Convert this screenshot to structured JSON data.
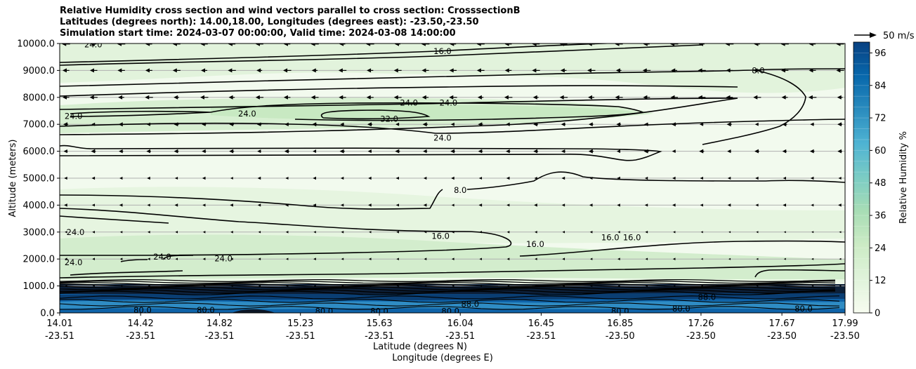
{
  "chart_data": {
    "type": "heatmap",
    "title_lines": [
      "Relative Humidity cross section and wind vectors parallel to cross section: CrosssectionB",
      "Latitudes (degrees north): 14.00,18.00, Longitudes (degrees east): -23.50,-23.50",
      "Simulation start time: 2024-03-07 00:00:00, Valid time: 2024-03-08 14:00:00"
    ],
    "xlabel": "Latitude (degrees N)",
    "xlabel2": "Longitude (degrees E)",
    "ylabel": "Altitude (meters)",
    "ylim": [
      0,
      10000
    ],
    "y_ticks": [
      "0.0",
      "1000.0",
      "2000.0",
      "3000.0",
      "4000.0",
      "5000.0",
      "6000.0",
      "7000.0",
      "8000.0",
      "9000.0",
      "10000.0"
    ],
    "x_ticks": [
      {
        "lat": "14.01",
        "lon": "-23.51"
      },
      {
        "lat": "14.42",
        "lon": "-23.51"
      },
      {
        "lat": "14.82",
        "lon": "-23.51"
      },
      {
        "lat": "15.23",
        "lon": "-23.51"
      },
      {
        "lat": "15.63",
        "lon": "-23.51"
      },
      {
        "lat": "16.04",
        "lon": "-23.51"
      },
      {
        "lat": "16.45",
        "lon": "-23.51"
      },
      {
        "lat": "16.85",
        "lon": "-23.50"
      },
      {
        "lat": "17.26",
        "lon": "-23.50"
      },
      {
        "lat": "17.67",
        "lon": "-23.50"
      },
      {
        "lat": "17.99",
        "lon": "-23.50"
      }
    ],
    "x_range": [
      14.01,
      17.99
    ],
    "grid": "horizontal",
    "colorbar": {
      "label": "Relative Humidity %",
      "range": [
        0,
        100
      ],
      "ticks": [
        "0",
        "12",
        "24",
        "36",
        "48",
        "60",
        "72",
        "84",
        "96"
      ],
      "colormap": "GnBu",
      "colors": [
        "#f7fcf0",
        "#e0f3db",
        "#ccebc5",
        "#a8ddb5",
        "#7bccc4",
        "#4eb3d3",
        "#2b8cbe",
        "#0868ac",
        "#084081"
      ]
    },
    "quiver_key": "50 m/s",
    "contour_labels": [
      {
        "text": "24.0",
        "lat": 14.18,
        "alt": 9960
      },
      {
        "text": "16.0",
        "lat": 15.95,
        "alt": 9710
      },
      {
        "text": "8.0",
        "lat": 17.55,
        "alt": 9000
      },
      {
        "text": "24.0",
        "lat": 14.08,
        "alt": 7300
      },
      {
        "text": "24.0",
        "lat": 14.96,
        "alt": 7400
      },
      {
        "text": "32.0",
        "lat": 15.68,
        "alt": 7200
      },
      {
        "text": "24.0",
        "lat": 15.78,
        "alt": 7800
      },
      {
        "text": "24.0",
        "lat": 15.98,
        "alt": 7800
      },
      {
        "text": "24.0",
        "lat": 15.95,
        "alt": 6500
      },
      {
        "text": "8.0",
        "lat": 16.04,
        "alt": 4560
      },
      {
        "text": "24.0",
        "lat": 14.09,
        "alt": 3000
      },
      {
        "text": "16.0",
        "lat": 15.94,
        "alt": 2850
      },
      {
        "text": "16.0",
        "lat": 16.42,
        "alt": 2550
      },
      {
        "text": "16.0",
        "lat": 16.8,
        "alt": 2800
      },
      {
        "text": "16.0",
        "lat": 16.91,
        "alt": 2800
      },
      {
        "text": "24.0",
        "lat": 14.08,
        "alt": 1880
      },
      {
        "text": "24.0",
        "lat": 14.53,
        "alt": 2080
      },
      {
        "text": "24.0",
        "lat": 14.84,
        "alt": 2020
      },
      {
        "text": "80.0",
        "lat": 15.99,
        "alt": 60
      },
      {
        "text": "80.0",
        "lat": 15.63,
        "alt": 60
      },
      {
        "text": "80.0",
        "lat": 15.35,
        "alt": 60
      },
      {
        "text": "80.0",
        "lat": 14.75,
        "alt": 100
      },
      {
        "text": "80.0",
        "lat": 14.43,
        "alt": 100
      },
      {
        "text": "88.0",
        "lat": 16.09,
        "alt": 330
      },
      {
        "text": "88.0",
        "lat": 17.29,
        "alt": 580
      },
      {
        "text": "80.0",
        "lat": 16.85,
        "alt": 60
      },
      {
        "text": "80.0",
        "lat": 17.16,
        "alt": 160
      },
      {
        "text": "80.0",
        "lat": 17.78,
        "alt": 160
      }
    ]
  }
}
